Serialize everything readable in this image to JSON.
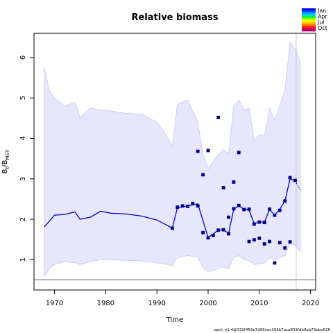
{
  "chart_data": {
    "type": "line",
    "title": "Relative biomass",
    "xlabel": "Time",
    "ylabel": {
      "main": "B",
      "sub1": "t",
      "sep": "/B",
      "sub2": "MSY"
    },
    "xlim": [
      1966,
      2021
    ],
    "ylim": [
      0.25,
      6.6
    ],
    "xticks": [
      "1970",
      "1980",
      "1990",
      "2000",
      "2010",
      "2020"
    ],
    "yticks": [
      "1",
      "2",
      "3",
      "4",
      "5",
      "6"
    ],
    "legend": {
      "position": "top-right",
      "labels": [
        "Jan",
        "Apr",
        "Jul",
        "Oct"
      ]
    },
    "reference_line_y": 0.5,
    "vertical_line_x": 2017.2,
    "footer": "spict_v1.4@332f459e7d96cec206b7aca803fdb0eb73eba526",
    "colors": {
      "line": "#0000cd",
      "band": "#e6e6ff",
      "band_edge": "#b8b8f0",
      "points": "#00008b"
    },
    "estimate": {
      "x": [
        1968,
        1969,
        1970,
        1972,
        1974,
        1975,
        1977,
        1979,
        1981,
        1984,
        1987,
        1990,
        1992,
        1993,
        1994,
        1996,
        1998,
        2000,
        2002,
        2003,
        2004,
        2005,
        2006,
        2007,
        2008,
        2009,
        2010,
        2011,
        2012,
        2013,
        2014,
        2015,
        2016,
        2017
      ],
      "y": [
        1.81,
        1.95,
        2.1,
        2.12,
        2.18,
        2.0,
        2.05,
        2.2,
        2.15,
        2.13,
        2.08,
        1.98,
        1.85,
        1.78,
        2.28,
        2.33,
        2.38,
        1.55,
        1.73,
        1.74,
        1.65,
        2.25,
        2.33,
        2.25,
        2.23,
        1.89,
        1.93,
        1.93,
        2.24,
        2.1,
        2.25,
        2.45,
        3.0,
        2.95
      ]
    },
    "ci_upper": {
      "x": [
        1968,
        1969,
        1970,
        1972,
        1974,
        1975,
        1977,
        1979,
        1981,
        1984,
        1987,
        1990,
        1992,
        1993,
        1994,
        1996,
        1998,
        1999,
        2000,
        2002,
        2003,
        2004,
        2005,
        2006,
        2007,
        2008,
        2009,
        2010,
        2011,
        2012,
        2013,
        2014,
        2015,
        2016,
        2017,
        2018
      ],
      "y": [
        5.75,
        5.2,
        5.0,
        4.8,
        4.9,
        4.5,
        4.75,
        4.7,
        4.68,
        4.62,
        4.6,
        4.4,
        4.05,
        3.8,
        4.85,
        4.95,
        4.4,
        3.6,
        3.25,
        3.6,
        3.72,
        3.62,
        4.8,
        4.95,
        4.7,
        4.75,
        3.95,
        4.1,
        4.05,
        4.75,
        4.45,
        4.8,
        5.2,
        6.38,
        6.2,
        5.9
      ]
    },
    "ci_lower": {
      "x": [
        1968,
        1969,
        1970,
        1972,
        1974,
        1975,
        1977,
        1979,
        1981,
        1984,
        1987,
        1990,
        1992,
        1993,
        1994,
        1996,
        1998,
        1999,
        2000,
        2002,
        2003,
        2004,
        2005,
        2006,
        2007,
        2008,
        2009,
        2010,
        2011,
        2012,
        2013,
        2014,
        2015,
        2016,
        2017,
        2018
      ],
      "y": [
        0.58,
        0.78,
        0.88,
        0.95,
        0.92,
        0.88,
        0.95,
        1.0,
        1.0,
        0.98,
        0.97,
        0.92,
        0.88,
        0.85,
        1.05,
        1.1,
        1.05,
        0.8,
        0.7,
        0.78,
        0.82,
        0.78,
        1.05,
        1.1,
        1.0,
        0.98,
        0.88,
        0.9,
        0.92,
        1.05,
        1.0,
        1.05,
        1.1,
        1.4,
        1.35,
        1.2
      ]
    },
    "forecast": {
      "x": [
        2017,
        2018
      ],
      "y": [
        2.95,
        2.72
      ]
    },
    "observations": [
      {
        "x": 1993,
        "y": 1.78
      },
      {
        "x": 1994,
        "y": 2.3
      },
      {
        "x": 1995,
        "y": 2.33
      },
      {
        "x": 1996,
        "y": 2.32
      },
      {
        "x": 1997,
        "y": 2.39
      },
      {
        "x": 1998,
        "y": 2.33
      },
      {
        "x": 1998,
        "y": 3.68
      },
      {
        "x": 1999,
        "y": 1.67
      },
      {
        "x": 1999,
        "y": 3.1
      },
      {
        "x": 2000,
        "y": 1.54
      },
      {
        "x": 2000,
        "y": 3.7
      },
      {
        "x": 2001,
        "y": 1.6
      },
      {
        "x": 2002,
        "y": 1.73
      },
      {
        "x": 2002,
        "y": 4.52
      },
      {
        "x": 2003,
        "y": 1.74
      },
      {
        "x": 2003,
        "y": 2.78
      },
      {
        "x": 2004,
        "y": 1.64
      },
      {
        "x": 2004,
        "y": 2.05
      },
      {
        "x": 2005,
        "y": 2.26
      },
      {
        "x": 2005,
        "y": 2.92
      },
      {
        "x": 2006,
        "y": 2.34
      },
      {
        "x": 2006,
        "y": 3.65
      },
      {
        "x": 2007,
        "y": 2.24
      },
      {
        "x": 2008,
        "y": 2.25
      },
      {
        "x": 2008,
        "y": 1.45
      },
      {
        "x": 2009,
        "y": 1.88
      },
      {
        "x": 2009,
        "y": 1.49
      },
      {
        "x": 2010,
        "y": 1.93
      },
      {
        "x": 2010,
        "y": 1.53
      },
      {
        "x": 2011,
        "y": 1.92
      },
      {
        "x": 2011,
        "y": 1.39
      },
      {
        "x": 2012,
        "y": 2.25
      },
      {
        "x": 2012,
        "y": 1.45
      },
      {
        "x": 2013,
        "y": 2.1
      },
      {
        "x": 2013,
        "y": 0.92
      },
      {
        "x": 2014,
        "y": 2.22
      },
      {
        "x": 2014,
        "y": 1.42
      },
      {
        "x": 2015,
        "y": 2.45
      },
      {
        "x": 2015,
        "y": 1.29
      },
      {
        "x": 2016,
        "y": 3.03
      },
      {
        "x": 2016,
        "y": 1.44
      },
      {
        "x": 2017,
        "y": 2.96
      }
    ]
  }
}
